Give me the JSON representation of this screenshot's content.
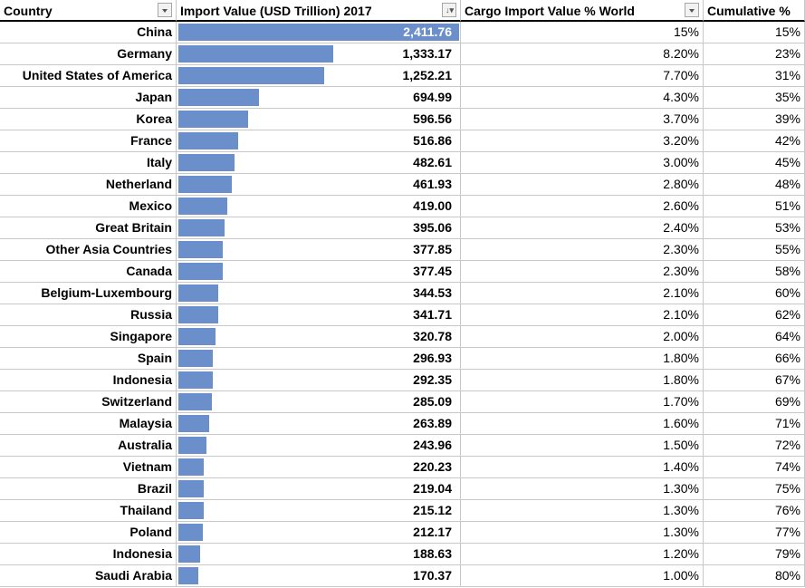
{
  "headers": {
    "country": "Country",
    "value": "Import Value (USD Trillion) 2017",
    "pct": "Cargo Import Value % World",
    "cum": "Cumulative %"
  },
  "icons": {
    "filter": "filter-dropdown-icon",
    "sorted_filter": "sort-descending-filter-icon"
  },
  "colors": {
    "bar": "#6b8fcb"
  },
  "max_value": 2411.76,
  "rows": [
    {
      "country": "China",
      "value": "2,411.76",
      "num": 2411.76,
      "pct": "15%",
      "cum": "15%"
    },
    {
      "country": "Germany",
      "value": "1,333.17",
      "num": 1333.17,
      "pct": "8.20%",
      "cum": "23%"
    },
    {
      "country": "United States of America",
      "value": "1,252.21",
      "num": 1252.21,
      "pct": "7.70%",
      "cum": "31%"
    },
    {
      "country": "Japan",
      "value": "694.99",
      "num": 694.99,
      "pct": "4.30%",
      "cum": "35%"
    },
    {
      "country": "Korea",
      "value": "596.56",
      "num": 596.56,
      "pct": "3.70%",
      "cum": "39%"
    },
    {
      "country": "France",
      "value": "516.86",
      "num": 516.86,
      "pct": "3.20%",
      "cum": "42%"
    },
    {
      "country": "Italy",
      "value": "482.61",
      "num": 482.61,
      "pct": "3.00%",
      "cum": "45%"
    },
    {
      "country": "Netherland",
      "value": "461.93",
      "num": 461.93,
      "pct": "2.80%",
      "cum": "48%"
    },
    {
      "country": "Mexico",
      "value": "419.00",
      "num": 419.0,
      "pct": "2.60%",
      "cum": "51%"
    },
    {
      "country": "Great Britain",
      "value": "395.06",
      "num": 395.06,
      "pct": "2.40%",
      "cum": "53%"
    },
    {
      "country": "Other Asia Countries",
      "value": "377.85",
      "num": 377.85,
      "pct": "2.30%",
      "cum": "55%"
    },
    {
      "country": "Canada",
      "value": "377.45",
      "num": 377.45,
      "pct": "2.30%",
      "cum": "58%"
    },
    {
      "country": "Belgium-Luxembourg",
      "value": "344.53",
      "num": 344.53,
      "pct": "2.10%",
      "cum": "60%"
    },
    {
      "country": "Russia",
      "value": "341.71",
      "num": 341.71,
      "pct": "2.10%",
      "cum": "62%"
    },
    {
      "country": "Singapore",
      "value": "320.78",
      "num": 320.78,
      "pct": "2.00%",
      "cum": "64%"
    },
    {
      "country": "Spain",
      "value": "296.93",
      "num": 296.93,
      "pct": "1.80%",
      "cum": "66%"
    },
    {
      "country": "Indonesia",
      "value": "292.35",
      "num": 292.35,
      "pct": "1.80%",
      "cum": "67%"
    },
    {
      "country": "Switzerland",
      "value": "285.09",
      "num": 285.09,
      "pct": "1.70%",
      "cum": "69%"
    },
    {
      "country": "Malaysia",
      "value": "263.89",
      "num": 263.89,
      "pct": "1.60%",
      "cum": "71%"
    },
    {
      "country": "Australia",
      "value": "243.96",
      "num": 243.96,
      "pct": "1.50%",
      "cum": "72%"
    },
    {
      "country": "Vietnam",
      "value": "220.23",
      "num": 220.23,
      "pct": "1.40%",
      "cum": "74%"
    },
    {
      "country": "Brazil",
      "value": "219.04",
      "num": 219.04,
      "pct": "1.30%",
      "cum": "75%"
    },
    {
      "country": "Thailand",
      "value": "215.12",
      "num": 215.12,
      "pct": "1.30%",
      "cum": "76%"
    },
    {
      "country": "Poland",
      "value": "212.17",
      "num": 212.17,
      "pct": "1.30%",
      "cum": "77%"
    },
    {
      "country": "Indonesia",
      "value": "188.63",
      "num": 188.63,
      "pct": "1.20%",
      "cum": "79%"
    },
    {
      "country": "Saudi Arabia",
      "value": "170.37",
      "num": 170.37,
      "pct": "1.00%",
      "cum": "80%"
    }
  ]
}
